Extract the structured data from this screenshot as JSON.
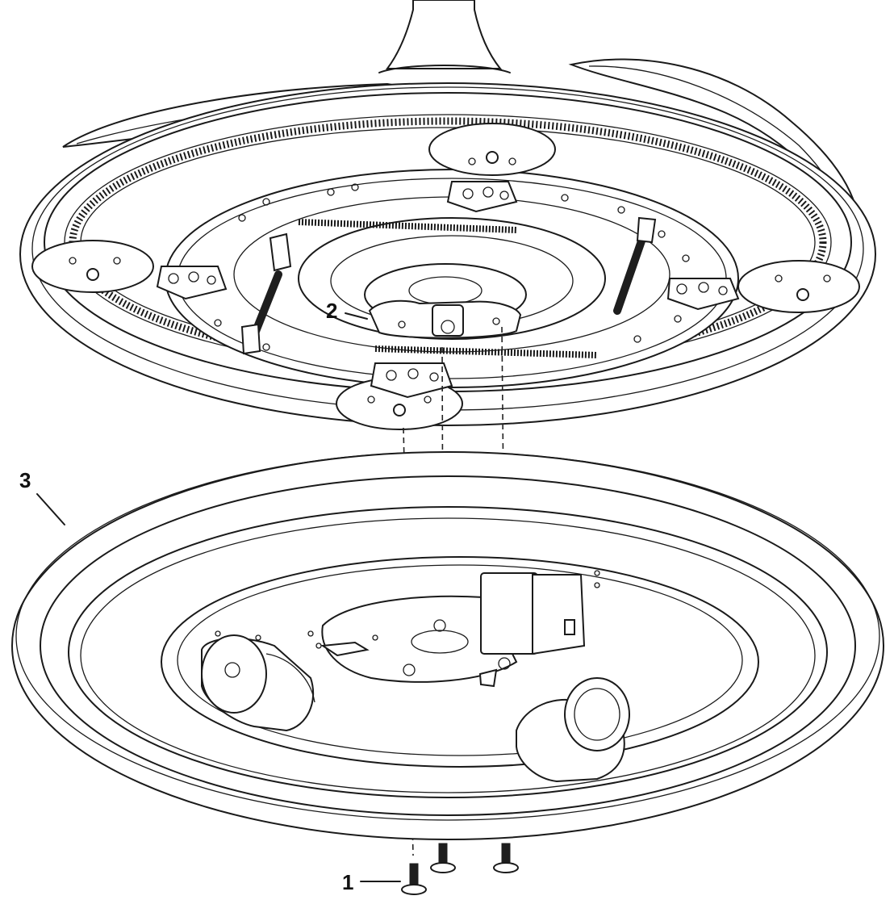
{
  "callouts": {
    "one": "1",
    "two": "2",
    "three": "3"
  },
  "colors": {
    "line": "#1a1a1a",
    "background": "#ffffff"
  }
}
